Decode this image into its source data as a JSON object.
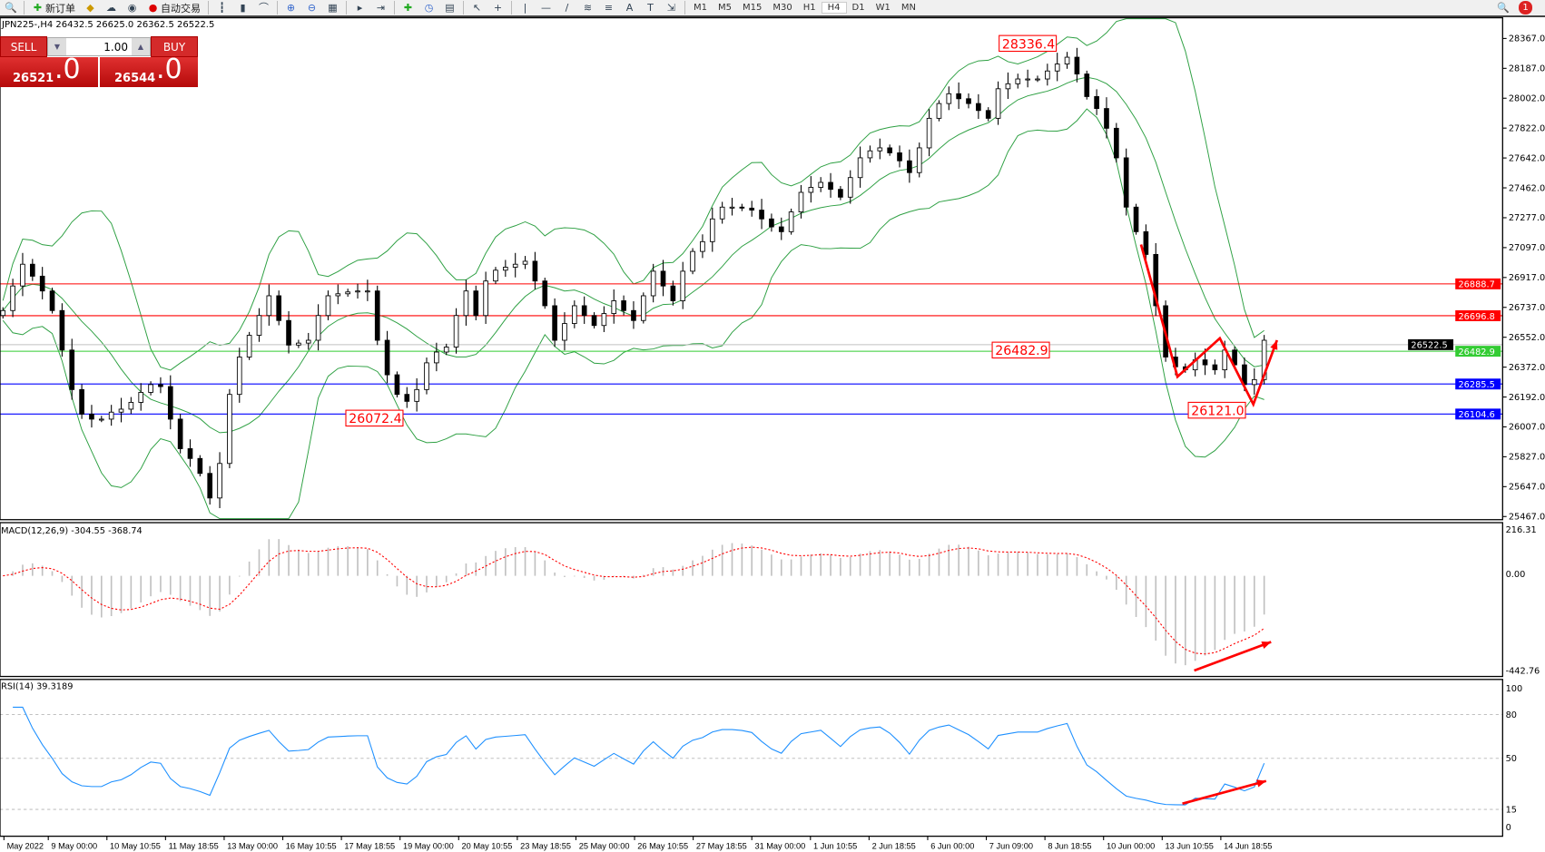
{
  "toolbar": {
    "icons": [
      "search-icon",
      "new-order-icon",
      "gold-icon",
      "cloud-icon",
      "signal-icon",
      "autotrading-icon",
      "bar-chart-icon",
      "candle-chart-icon",
      "line-chart-icon",
      "zoom-in-icon",
      "zoom-out-icon",
      "tile-icon",
      "autoscroll-icon",
      "shift-icon",
      "indicators-icon",
      "periods-icon",
      "templates-icon",
      "cursor-icon",
      "crosshair-icon",
      "vertical-line-icon",
      "horizontal-line-icon",
      "trendline-icon",
      "fibonacci-icon",
      "fibo-lines-icon",
      "text-icon",
      "label-icon",
      "arrows-icon"
    ],
    "new_order": "新订单",
    "autotrading": "自动交易",
    "timeframes": [
      "M1",
      "M5",
      "M15",
      "M30",
      "H1",
      "H4",
      "D1",
      "W1",
      "MN"
    ],
    "active_timeframe": "H4",
    "notifications": "1"
  },
  "chart": {
    "title": "JPN225-,H4  26432.5 26625.0 26362.5 26522.5"
  },
  "trade": {
    "sell": "SELL",
    "buy": "BUY",
    "lot": "1.00",
    "bid_main": "26521",
    "bid_frac": ".0",
    "ask_main": "26544",
    "ask_frac": ".0"
  },
  "chart_data": {
    "type": "candlestick",
    "symbol": "JPN225-",
    "timeframe": "H4",
    "closes": [
      26728,
      26876,
      27007,
      26935,
      26846,
      26728,
      26490,
      26252,
      26104,
      26074,
      26074,
      26116,
      26134,
      26175,
      26235,
      26282,
      26270,
      26074,
      25896,
      25837,
      25747,
      25599,
      25807,
      26223,
      26448,
      26579,
      26698,
      26817,
      26668,
      26520,
      26532,
      26549,
      26698,
      26817,
      26829,
      26840,
      26846,
      26846,
      26549,
      26341,
      26223,
      26181,
      26252,
      26413,
      26478,
      26508,
      26698,
      26846,
      26698,
      26906,
      26971,
      26989,
      27007,
      27025,
      26906,
      26757,
      26549,
      26650,
      26757,
      26698,
      26638,
      26710,
      26787,
      26728,
      26668,
      26817,
      26965,
      26876,
      26787,
      26965,
      27084,
      27143,
      27280,
      27351,
      27351,
      27345,
      27333,
      27280,
      27232,
      27203,
      27322,
      27440,
      27470,
      27500,
      27458,
      27411,
      27529,
      27648,
      27690,
      27708,
      27678,
      27630,
      27559,
      27708,
      27886,
      27975,
      28034,
      28004,
      27975,
      27933,
      27886,
      28064,
      28094,
      28123,
      28123,
      28123,
      28171,
      28213,
      28254,
      28153,
      28017,
      27945,
      27826,
      27648,
      27351,
      27203,
      27066,
      26757,
      26448,
      26389,
      26371,
      26431,
      26401,
      26371,
      26490,
      26401,
      26282,
      26312,
      26549
    ],
    "price_axis": [
      "28367.0",
      "28187.0",
      "28002.0",
      "27822.0",
      "27642.0",
      "27462.0",
      "27277.0",
      "27097.0",
      "26917.0",
      "26737.0",
      "26552.0",
      "26372.0",
      "26192.0",
      "26007.0",
      "25827.0",
      "25647.0",
      "25467.0"
    ],
    "time_axis": [
      "May 2022",
      "9 May 00:00",
      "10 May 10:55",
      "11 May 18:55",
      "13 May 00:00",
      "16 May 10:55",
      "17 May 18:55",
      "19 May 00:00",
      "20 May 10:55",
      "23 May 18:55",
      "25 May 00:00",
      "26 May 10:55",
      "27 May 18:55",
      "31 May 00:00",
      "1 Jun 10:55",
      "2 Jun 18:55",
      "6 Jun 00:00",
      "7 Jun 09:00",
      "8 Jun 18:55",
      "10 Jun 00:00",
      "13 Jun 10:55",
      "14 Jun 18:55"
    ],
    "hlines": [
      {
        "value": 26888.7,
        "label": "26888.7",
        "color": "#ff0000"
      },
      {
        "value": 26696.8,
        "label": "26696.8",
        "color": "#ff0000"
      },
      {
        "value": 26522.5,
        "label": "26522.5",
        "color": "#000000",
        "line": "#c0c0c0"
      },
      {
        "value": 26482.9,
        "label": "26482.9",
        "color": "#33cc33"
      },
      {
        "value": 26285.5,
        "label": "26285.5",
        "color": "#0000ff"
      },
      {
        "value": 26104.6,
        "label": "26104.6",
        "color": "#0000ff"
      }
    ],
    "price_labels": [
      {
        "text": "28336.4",
        "value": 28336.4
      },
      {
        "text": "26482.9",
        "value": 26482.9
      },
      {
        "text": "26072.4",
        "value": 26072.4
      },
      {
        "text": "26121.0",
        "value": 26121.0
      }
    ],
    "bollinger_color": "#2ea043",
    "macd": {
      "label": "MACD(12,26,9) -304.55 -368.74",
      "axis": [
        "216.31",
        "0.00",
        "-442.76"
      ],
      "range": [
        -442.76,
        216.31
      ],
      "hist_color": "#c0c0c0",
      "signal_color": "#ff0000"
    },
    "rsi": {
      "label": "RSI(14) 39.3189",
      "axis": [
        "100",
        "80",
        "50",
        "15",
        "0"
      ],
      "levels": [
        80,
        50,
        15
      ],
      "color": "#1e90ff"
    }
  }
}
